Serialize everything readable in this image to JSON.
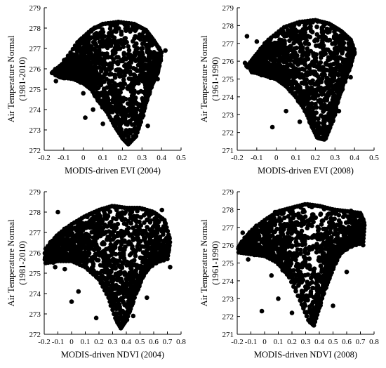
{
  "chart_data": [
    {
      "type": "scatter",
      "xlabel": "MODIS-driven EVI (2004)",
      "ylabel_lines": [
        "Air Temperature Normal",
        "(1981-2010)"
      ],
      "xlim": [
        -0.2,
        0.5
      ],
      "ylim": [
        272,
        279
      ],
      "xticks": [
        "-0.2",
        "-0.1",
        "0",
        "0.1",
        "0.2",
        "0.3",
        "0.4",
        "0.5"
      ],
      "yticks": [
        "272",
        "273",
        "274",
        "275",
        "276",
        "277",
        "278",
        "279"
      ],
      "marker_color": "#000000",
      "shape": {
        "leftTop": [
          [
            -0.16,
            275.8
          ],
          [
            -0.1,
            276.3
          ],
          [
            -0.03,
            277.3
          ],
          [
            0.04,
            277.9
          ],
          [
            0.1,
            278.2
          ],
          [
            0.18,
            278.3
          ],
          [
            0.26,
            278.2
          ],
          [
            0.32,
            277.9
          ],
          [
            0.36,
            277.4
          ],
          [
            0.4,
            276.8
          ],
          [
            0.38,
            275.8
          ]
        ],
        "rightBottom": [
          [
            0.35,
            275.3
          ],
          [
            0.32,
            274.5
          ],
          [
            0.3,
            273.6
          ],
          [
            0.27,
            272.7
          ],
          [
            0.23,
            272.3
          ],
          [
            0.2,
            272.6
          ],
          [
            0.16,
            273.2
          ],
          [
            0.12,
            273.9
          ],
          [
            0.08,
            274.4
          ],
          [
            0.04,
            275.0
          ],
          [
            0.0,
            275.3
          ],
          [
            -0.05,
            275.5
          ],
          [
            -0.12,
            275.6
          ]
        ],
        "outliers": [
          [
            -0.14,
            275.4
          ],
          [
            -0.05,
            275.9
          ],
          [
            0.0,
            274.8
          ],
          [
            0.01,
            273.6
          ],
          [
            0.05,
            274.0
          ],
          [
            0.42,
            276.9
          ],
          [
            0.38,
            275.5
          ],
          [
            0.1,
            273.3
          ],
          [
            -0.02,
            276.4
          ],
          [
            0.33,
            273.2
          ]
        ]
      }
    },
    {
      "type": "scatter",
      "xlabel": "MODIS-driven EVI (2008)",
      "ylabel_lines": [
        "Air Temperature Normal",
        "(1961-1990)"
      ],
      "xlim": [
        -0.2,
        0.5
      ],
      "ylim": [
        271,
        279
      ],
      "xticks": [
        "-0.2",
        "-0.1",
        "0",
        "0.1",
        "0.2",
        "0.3",
        "0.4",
        "0.5"
      ],
      "yticks": [
        "271",
        "272",
        "273",
        "274",
        "275",
        "276",
        "277",
        "278",
        "279"
      ],
      "marker_color": "#000000",
      "shape": {
        "leftTop": [
          [
            -0.15,
            275.7
          ],
          [
            -0.1,
            276.4
          ],
          [
            -0.04,
            277.2
          ],
          [
            0.04,
            277.9
          ],
          [
            0.12,
            278.2
          ],
          [
            0.2,
            278.3
          ],
          [
            0.27,
            278.1
          ],
          [
            0.33,
            277.7
          ],
          [
            0.38,
            277.2
          ],
          [
            0.4,
            276.5
          ],
          [
            0.37,
            275.6
          ]
        ],
        "rightBottom": [
          [
            0.34,
            274.9
          ],
          [
            0.31,
            273.8
          ],
          [
            0.29,
            272.7
          ],
          [
            0.25,
            271.6
          ],
          [
            0.21,
            271.7
          ],
          [
            0.18,
            272.4
          ],
          [
            0.15,
            273.2
          ],
          [
            0.1,
            274.0
          ],
          [
            0.05,
            274.6
          ],
          [
            0.0,
            275.0
          ],
          [
            -0.06,
            275.2
          ],
          [
            -0.12,
            275.4
          ]
        ],
        "outliers": [
          [
            -0.15,
            277.4
          ],
          [
            -0.1,
            277.1
          ],
          [
            -0.02,
            272.3
          ],
          [
            0.05,
            273.2
          ],
          [
            -0.08,
            276.7
          ],
          [
            0.38,
            275.1
          ],
          [
            0.39,
            276.9
          ],
          [
            0.12,
            272.6
          ],
          [
            -0.16,
            275.9
          ],
          [
            0.32,
            273.2
          ]
        ]
      }
    },
    {
      "type": "scatter",
      "xlabel": "MODIS-driven NDVI (2004)",
      "ylabel_lines": [
        "Air Temperature Normal",
        "(1981-2010)"
      ],
      "xlim": [
        -0.2,
        0.8
      ],
      "ylim": [
        272,
        279
      ],
      "xticks": [
        "-0.2",
        "-0.1",
        "0",
        "0.1",
        "0.2",
        "0.3",
        "0.4",
        "0.5",
        "0.6",
        "0.7",
        "0.8"
      ],
      "yticks": [
        "272",
        "273",
        "274",
        "275",
        "276",
        "277",
        "278",
        "279"
      ],
      "marker_color": "#000000",
      "shape": {
        "leftTop": [
          [
            -0.19,
            276.2
          ],
          [
            -0.1,
            276.9
          ],
          [
            0.0,
            277.4
          ],
          [
            0.1,
            277.8
          ],
          [
            0.2,
            278.1
          ],
          [
            0.3,
            278.3
          ],
          [
            0.4,
            278.2
          ],
          [
            0.5,
            278.2
          ],
          [
            0.6,
            278.0
          ],
          [
            0.68,
            277.6
          ],
          [
            0.72,
            276.6
          ],
          [
            0.7,
            275.7
          ]
        ],
        "rightBottom": [
          [
            0.62,
            275.6
          ],
          [
            0.55,
            275.2
          ],
          [
            0.5,
            274.6
          ],
          [
            0.45,
            273.6
          ],
          [
            0.4,
            272.7
          ],
          [
            0.36,
            272.3
          ],
          [
            0.32,
            272.8
          ],
          [
            0.27,
            273.8
          ],
          [
            0.2,
            274.7
          ],
          [
            0.1,
            275.3
          ],
          [
            0.0,
            275.6
          ],
          [
            -0.1,
            275.6
          ],
          [
            -0.19,
            275.5
          ]
        ],
        "outliers": [
          [
            -0.12,
            275.3
          ],
          [
            -0.05,
            275.2
          ],
          [
            0.0,
            273.6
          ],
          [
            0.05,
            274.1
          ],
          [
            0.18,
            272.8
          ],
          [
            0.45,
            272.9
          ],
          [
            0.72,
            275.3
          ],
          [
            0.66,
            278.1
          ],
          [
            -0.1,
            278.0
          ],
          [
            0.55,
            273.8
          ]
        ]
      }
    },
    {
      "type": "scatter",
      "xlabel": "MODIS-driven NDVI (2008)",
      "ylabel_lines": [
        "Air Temperature Normal",
        "(1961-1990)"
      ],
      "xlim": [
        -0.2,
        0.8
      ],
      "ylim": [
        271,
        279
      ],
      "xticks": [
        "-0.2",
        "-0.1",
        "0",
        "0.1",
        "0.2",
        "0.3",
        "0.4",
        "0.5",
        "0.6",
        "0.7",
        "0.8"
      ],
      "yticks": [
        "271",
        "272",
        "273",
        "274",
        "275",
        "276",
        "277",
        "278",
        "279"
      ],
      "marker_color": "#000000",
      "shape": {
        "leftTop": [
          [
            -0.19,
            275.9
          ],
          [
            -0.1,
            276.8
          ],
          [
            0.0,
            277.4
          ],
          [
            0.1,
            277.9
          ],
          [
            0.2,
            278.1
          ],
          [
            0.3,
            278.3
          ],
          [
            0.4,
            278.2
          ],
          [
            0.5,
            278.0
          ],
          [
            0.6,
            277.9
          ],
          [
            0.7,
            277.8
          ],
          [
            0.73,
            277.2
          ],
          [
            0.72,
            276.2
          ]
        ],
        "rightBottom": [
          [
            0.64,
            276.0
          ],
          [
            0.55,
            275.6
          ],
          [
            0.5,
            274.9
          ],
          [
            0.45,
            273.8
          ],
          [
            0.4,
            272.5
          ],
          [
            0.36,
            271.5
          ],
          [
            0.32,
            271.8
          ],
          [
            0.26,
            272.9
          ],
          [
            0.18,
            274.2
          ],
          [
            0.1,
            275.0
          ],
          [
            0.0,
            275.4
          ],
          [
            -0.1,
            275.5
          ],
          [
            -0.19,
            275.6
          ]
        ],
        "outliers": [
          [
            -0.16,
            276.7
          ],
          [
            -0.02,
            272.3
          ],
          [
            0.1,
            273.0
          ],
          [
            0.2,
            272.2
          ],
          [
            0.5,
            272.6
          ],
          [
            0.72,
            276.0
          ],
          [
            0.7,
            277.6
          ],
          [
            0.05,
            274.3
          ],
          [
            -0.12,
            275.2
          ],
          [
            0.6,
            274.5
          ]
        ]
      }
    }
  ]
}
